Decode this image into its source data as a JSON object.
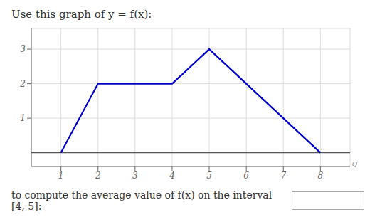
{
  "chart_data": {
    "type": "line",
    "title": "Use this graph of y = f(x):",
    "subtitle": "to compute the average value of f(x) on the interval [4, 5]:",
    "x": [
      1,
      2,
      4,
      5,
      8
    ],
    "values": [
      0,
      2,
      2,
      3,
      0
    ],
    "color": "#0000CC",
    "xlim": [
      0.2,
      8.8
    ],
    "ylim": [
      -0.4,
      3.6
    ],
    "xticks": [
      1,
      2,
      3,
      4,
      5,
      6,
      7,
      8
    ],
    "yticks": [
      1,
      2,
      3
    ],
    "grid": true,
    "annotations": [
      "Q"
    ]
  }
}
